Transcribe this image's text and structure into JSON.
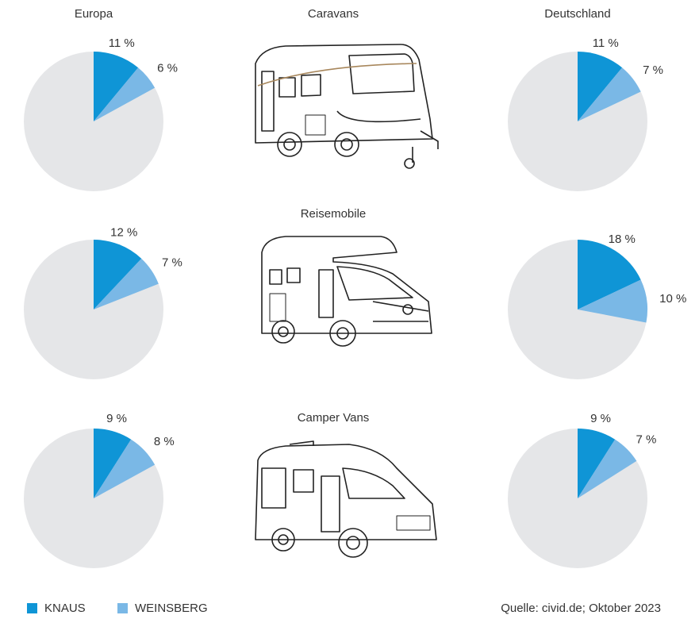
{
  "page": {
    "column_titles": [
      "Europa",
      "Deutschland"
    ],
    "row_titles": [
      "Caravans",
      "Reisemobile",
      "Camper Vans"
    ],
    "legend": {
      "names": [
        "KNAUS",
        "WEINSBERG"
      ],
      "colors": [
        "#0f95d6",
        "#7ab8e6"
      ],
      "rest_color": "#e5e6e8"
    },
    "source": "Quelle: civid.de; Oktober 2023"
  },
  "chart_data": [
    {
      "type": "pie",
      "values": [
        11,
        6
      ],
      "value_labels": [
        "11 %",
        "6 %"
      ]
    },
    {
      "type": "pie",
      "values": [
        11,
        7
      ],
      "value_labels": [
        "11 %",
        "7 %"
      ]
    },
    {
      "type": "pie",
      "values": [
        12,
        7
      ],
      "value_labels": [
        "12 %",
        "7 %"
      ]
    },
    {
      "type": "pie",
      "values": [
        18,
        10
      ],
      "value_labels": [
        "18 %",
        "10 %"
      ]
    },
    {
      "type": "pie",
      "values": [
        9,
        8
      ],
      "value_labels": [
        "9 %",
        "8 %"
      ]
    },
    {
      "type": "pie",
      "values": [
        9,
        7
      ],
      "value_labels": [
        "9 %",
        "7 %"
      ]
    }
  ]
}
